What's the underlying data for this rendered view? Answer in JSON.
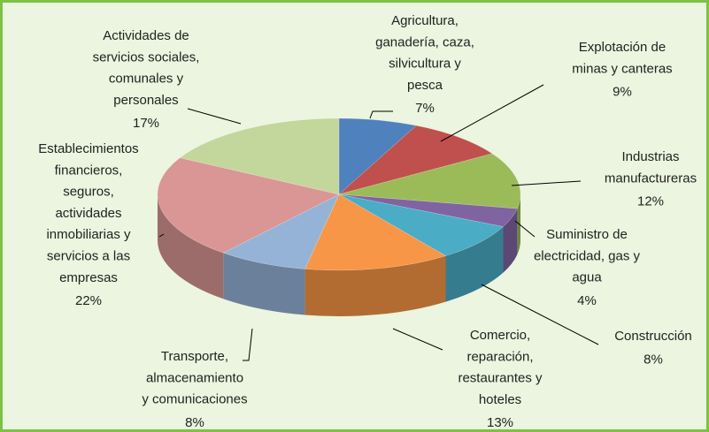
{
  "chart_data": {
    "type": "pie",
    "categories": [
      "Agricultura,\nganadería, caza,\nsilvicultura y\npesca",
      "Explotación de\nminas y canteras",
      "Industrias\nmanufactureras",
      "Suministro de\nelectricidad, gas y\nagua",
      "Construcción",
      "Comercio,\nreparación,\nrestaurantes y\nhoteles",
      "Transporte,\nalmacenamiento\ny comunicaciones",
      "Establecimientos\nfinancieros,\nseguros,\nactividades\ninmobiliarias y\nservicios a las\nempresas",
      "Actividades de\nservicios sociales,\ncomunales y\npersonales"
    ],
    "values": [
      7,
      9,
      12,
      4,
      8,
      13,
      8,
      22,
      17
    ],
    "value_labels": [
      "7%",
      "9%",
      "12%",
      "4%",
      "8%",
      "13%",
      "8%",
      "22%",
      "17%"
    ],
    "colors": [
      "#4f81bd",
      "#c0504d",
      "#9bbb59",
      "#8064a2",
      "#4bacc6",
      "#f79646",
      "#95b3d7",
      "#d99694",
      "#c3d69b"
    ]
  }
}
